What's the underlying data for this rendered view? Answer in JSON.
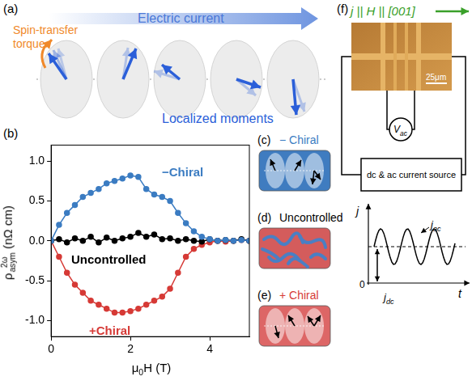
{
  "figure": {
    "a": {
      "label": "(a)",
      "current": "Electric current",
      "torque": "Spin-transfer torque",
      "moments": "Localized moments"
    },
    "b": {
      "label": "(b)"
    },
    "c": {
      "label": "(c)",
      "title": "− Chiral"
    },
    "d": {
      "label": "(d)",
      "title": "Uncontrolled"
    },
    "e": {
      "label": "(e)",
      "title": "+ Chiral"
    },
    "f": {
      "label": "(f)",
      "direction": "j || H || [001]",
      "scale_bar": "25μm",
      "voltmeter": {
        "base": "V",
        "sub": "ac"
      },
      "source": "dc & ac current source",
      "waveform": {
        "y_axis": "j",
        "x_axis": "t",
        "origin": "0",
        "ac": {
          "base": "j",
          "sub": "ac"
        },
        "dc": {
          "base": "j",
          "sub": "dc"
        }
      }
    }
  },
  "chart_data": {
    "type": "line",
    "x_label": {
      "base": "μ",
      "sub": "0",
      "after": "H (T)"
    },
    "y_label": {
      "base": "ρ",
      "sup": "2ω",
      "sub": "asym",
      "after": " (nΩ cm)"
    },
    "x": [
      0.0,
      0.2,
      0.4,
      0.6,
      0.8,
      1.0,
      1.2,
      1.4,
      1.6,
      1.8,
      2.0,
      2.2,
      2.4,
      2.6,
      2.8,
      3.0,
      3.2,
      3.4,
      3.6,
      3.8,
      4.0,
      4.2,
      4.4,
      4.6,
      4.8,
      5.0
    ],
    "series": [
      {
        "name": "−Chiral",
        "color": "#3b7cc2",
        "marker": "circle",
        "line_style": "solid",
        "values": [
          0.0,
          0.2,
          0.35,
          0.45,
          0.55,
          0.6,
          0.65,
          0.72,
          0.75,
          0.78,
          0.82,
          0.8,
          0.65,
          0.58,
          0.55,
          0.5,
          0.35,
          0.22,
          0.12,
          0.05,
          0.02,
          0.0,
          0.01,
          0.0,
          0.01,
          0.0
        ]
      },
      {
        "name": "Uncontrolled",
        "color": "#000000",
        "marker": "circle",
        "line_style": "solid",
        "values": [
          0.0,
          0.02,
          -0.02,
          0.03,
          0.0,
          0.05,
          -0.02,
          0.04,
          0.0,
          0.03,
          0.05,
          0.1,
          0.05,
          0.08,
          0.02,
          0.03,
          0.0,
          0.02,
          0.0,
          -0.01,
          0.02,
          0.0,
          0.01,
          0.0,
          0.02,
          0.0
        ]
      },
      {
        "name": "+Chiral",
        "color": "#d63a36",
        "marker": "circle",
        "line_style": "solid",
        "values": [
          0.0,
          -0.2,
          -0.4,
          -0.55,
          -0.65,
          -0.75,
          -0.8,
          -0.85,
          -0.9,
          -0.9,
          -0.88,
          -0.85,
          -0.8,
          -0.75,
          -0.7,
          -0.6,
          -0.4,
          -0.2,
          -0.1,
          -0.05,
          -0.02,
          0.0,
          -0.01,
          0.0,
          0.01,
          0.0
        ]
      }
    ],
    "xlim": [
      0,
      5
    ],
    "xticks": [
      0,
      2,
      4
    ],
    "ylim": [
      -1.2,
      1.2
    ],
    "yticks": [
      {
        "value": -1.0,
        "label": "-1.0"
      },
      {
        "value": -0.5,
        "label": "-0.5"
      },
      {
        "value": 0,
        "label": "0.0"
      },
      {
        "value": 0.5,
        "label": "0.5"
      },
      {
        "value": 1.0,
        "label": "1.0"
      }
    ],
    "grid": false
  }
}
